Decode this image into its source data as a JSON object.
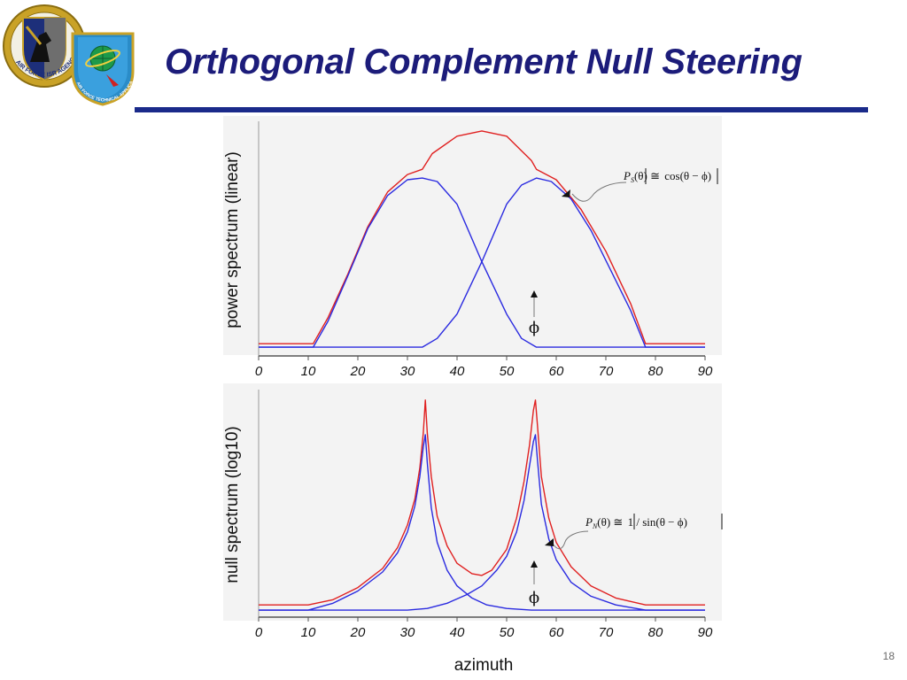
{
  "slide": {
    "title": "Orthogonal Complement Null Steering",
    "page_number": "18",
    "colors": {
      "title": "#1c1c7a",
      "rule": "#1a2a8a",
      "red": "#e02020",
      "blue": "#2a2ae0"
    }
  },
  "logos": {
    "left_seal": {
      "text": "AIR FORCE ISR AGENCY",
      "icon": "isr-agency-seal-icon"
    },
    "right_seal": {
      "text": "AIR FORCE TECHNICAL APPLICATIONS CENTER",
      "icon": "aftac-seal-icon"
    }
  },
  "phi_symbol": "ϕ",
  "chart_data": [
    {
      "type": "line",
      "name": "power spectrum",
      "ylabel": "power spectrum (linear)",
      "xlabel": "",
      "xlim": [
        0,
        90
      ],
      "ylim": [
        0,
        1.3
      ],
      "x_ticks": [
        "0",
        "10",
        "20",
        "30",
        "40",
        "50",
        "60",
        "70",
        "80",
        "90"
      ],
      "annotation": {
        "P": "P",
        "sub": "S",
        "rest": "(θ) ≅ ",
        "expr": "cos(θ − ϕ)"
      },
      "series": [
        {
          "name": "red sum",
          "color": "#e02020",
          "x": [
            0,
            11,
            14,
            18,
            22,
            26,
            30,
            33,
            35,
            40,
            45,
            50,
            55,
            56,
            60,
            65,
            70,
            75,
            78,
            90
          ],
          "y": [
            0.05,
            0.05,
            0.2,
            0.45,
            0.72,
            0.92,
            1.02,
            1.05,
            1.14,
            1.24,
            1.27,
            1.24,
            1.1,
            1.05,
            0.99,
            0.82,
            0.58,
            0.28,
            0.05,
            0.05
          ]
        },
        {
          "name": "blue left",
          "color": "#2a2ae0",
          "x": [
            0,
            11,
            14,
            18,
            22,
            26,
            30,
            33,
            36,
            40,
            45,
            50,
            53,
            56,
            90
          ],
          "y": [
            0.03,
            0.03,
            0.18,
            0.44,
            0.71,
            0.9,
            0.99,
            1.0,
            0.98,
            0.85,
            0.52,
            0.22,
            0.08,
            0.03,
            0.03
          ]
        },
        {
          "name": "blue right",
          "color": "#2a2ae0",
          "x": [
            0,
            33,
            36,
            40,
            45,
            50,
            53,
            56,
            59,
            63,
            67,
            71,
            75,
            78,
            90
          ],
          "y": [
            0.03,
            0.03,
            0.08,
            0.22,
            0.52,
            0.85,
            0.96,
            1.0,
            0.98,
            0.88,
            0.7,
            0.47,
            0.24,
            0.03,
            0.03
          ]
        }
      ]
    },
    {
      "type": "line",
      "name": "null spectrum",
      "ylabel": "null spectrum (log10)",
      "xlabel": "azimuth",
      "xlim": [
        0,
        90
      ],
      "ylim": [
        0,
        1.3
      ],
      "x_ticks": [
        "0",
        "10",
        "20",
        "30",
        "40",
        "50",
        "60",
        "70",
        "80",
        "90"
      ],
      "annotation": {
        "P": "P",
        "sub": "N",
        "rest": "(θ) ≅ ",
        "expr": "1 / sin(θ − ϕ)"
      },
      "series": [
        {
          "name": "red sum",
          "color": "#e02020",
          "x": [
            0,
            10,
            15,
            20,
            25,
            28,
            30,
            31.5,
            32.5,
            33.2,
            33.6,
            34.0,
            34.8,
            36,
            38,
            40,
            43,
            45,
            47,
            50,
            52,
            53.5,
            54.6,
            55.4,
            55.8,
            56.2,
            57,
            58.5,
            60,
            63,
            67,
            72,
            78,
            90
          ],
          "y": [
            0.06,
            0.06,
            0.09,
            0.16,
            0.27,
            0.39,
            0.52,
            0.67,
            0.85,
            1.05,
            1.24,
            1.05,
            0.8,
            0.57,
            0.4,
            0.3,
            0.24,
            0.23,
            0.26,
            0.38,
            0.56,
            0.77,
            0.98,
            1.18,
            1.24,
            1.1,
            0.8,
            0.56,
            0.42,
            0.28,
            0.17,
            0.1,
            0.06,
            0.06
          ]
        },
        {
          "name": "blue left",
          "color": "#2a2ae0",
          "x": [
            0,
            10,
            15,
            20,
            25,
            28,
            30,
            31.5,
            32.5,
            33.2,
            33.6,
            34.0,
            34.8,
            36,
            38,
            40,
            43,
            46,
            50,
            55,
            60,
            90
          ],
          "y": [
            0.03,
            0.03,
            0.07,
            0.14,
            0.25,
            0.36,
            0.48,
            0.63,
            0.8,
            0.97,
            1.04,
            0.88,
            0.62,
            0.42,
            0.26,
            0.17,
            0.1,
            0.06,
            0.04,
            0.03,
            0.03,
            0.03
          ]
        },
        {
          "name": "blue right",
          "color": "#2a2ae0",
          "x": [
            0,
            30,
            34,
            38,
            42,
            45,
            48,
            50,
            52,
            53.5,
            54.6,
            55.4,
            55.8,
            56.2,
            57,
            58.5,
            60,
            63,
            67,
            72,
            78,
            90
          ],
          "y": [
            0.03,
            0.03,
            0.04,
            0.07,
            0.12,
            0.17,
            0.26,
            0.34,
            0.48,
            0.66,
            0.86,
            1.0,
            1.04,
            0.9,
            0.64,
            0.44,
            0.32,
            0.19,
            0.11,
            0.06,
            0.03,
            0.03
          ]
        }
      ]
    }
  ]
}
